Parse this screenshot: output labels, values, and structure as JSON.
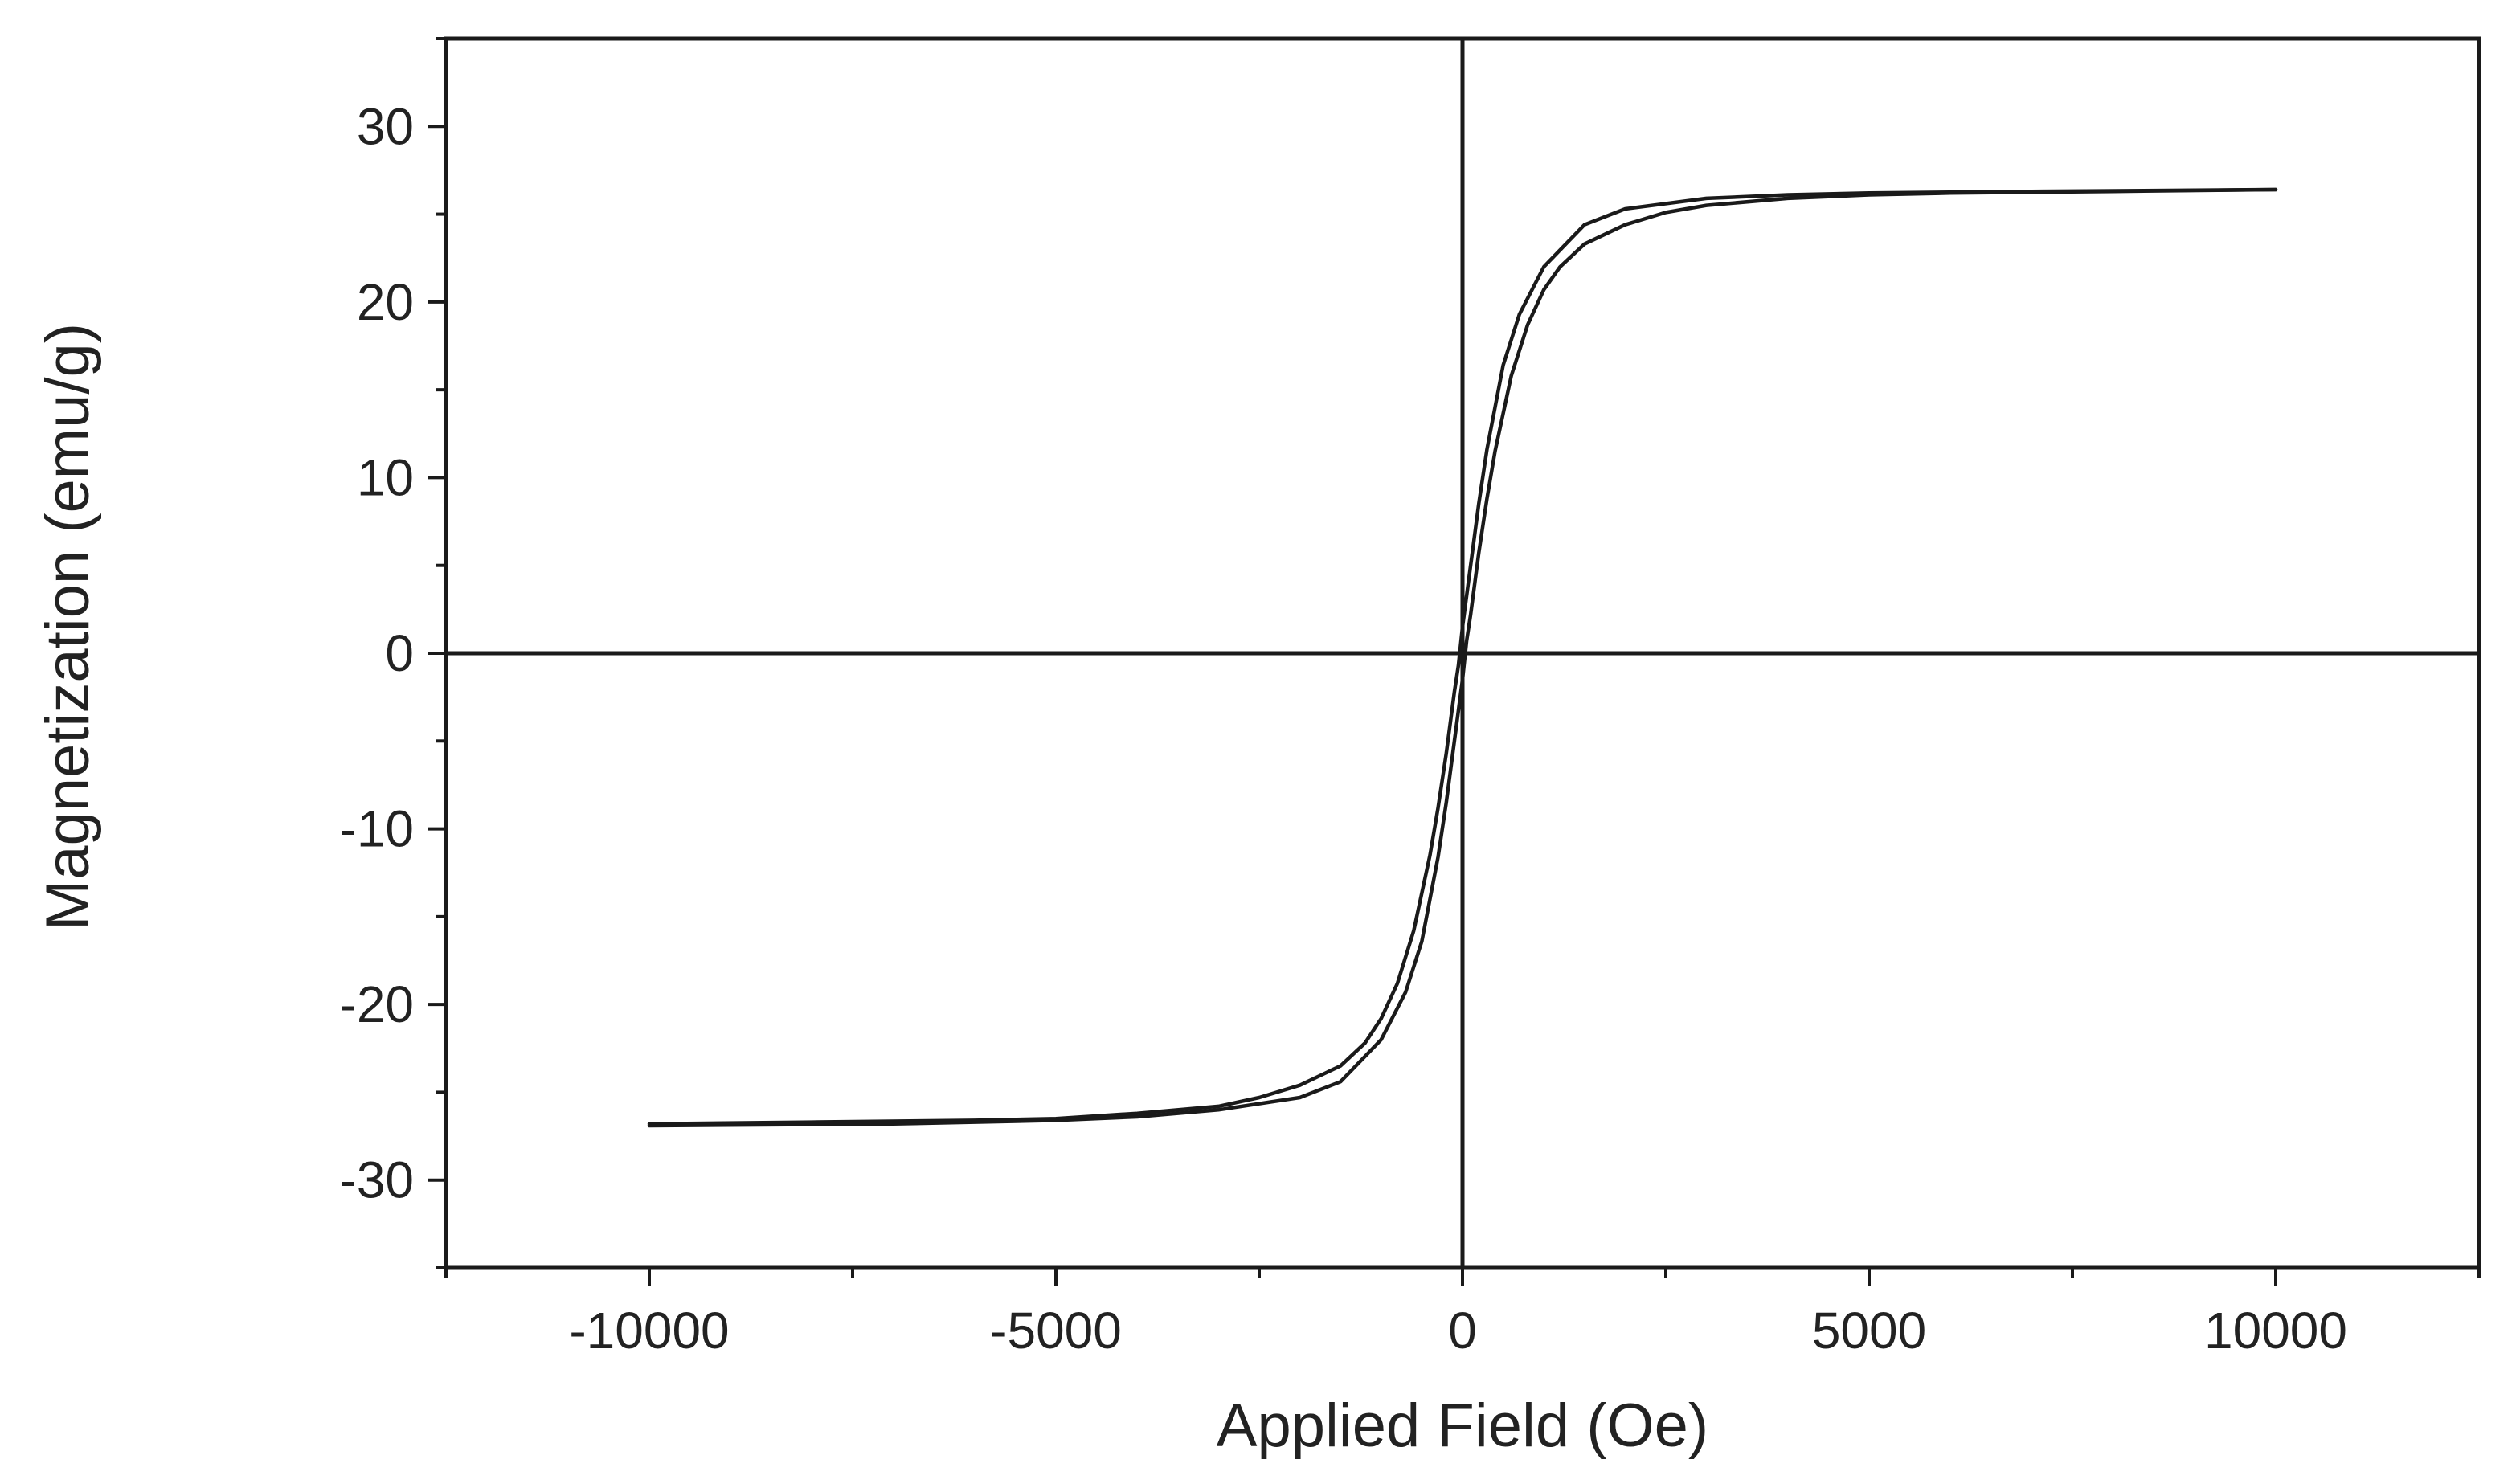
{
  "chart_data": {
    "type": "line",
    "title": "",
    "xlabel": "Applied Field (Oe)",
    "ylabel": "Magnetization (emu/g)",
    "xlim": [
      -12500,
      12500
    ],
    "ylim": [
      -35,
      35
    ],
    "x_ticks": [
      -10000,
      -5000,
      0,
      5000,
      10000
    ],
    "x_tick_labels": [
      "-10000",
      "-5000",
      "0",
      "5000",
      "10000"
    ],
    "y_ticks": [
      -30,
      -20,
      -10,
      0,
      10,
      20,
      30
    ],
    "y_tick_labels": [
      "-30",
      "-20",
      "-10",
      "0",
      "10",
      "20",
      "30"
    ],
    "grid": false,
    "legend": "none",
    "line_color": "#1a1a1a",
    "zero_lines": true,
    "series": [
      {
        "x": [
          10000,
          8000,
          6000,
          5000,
          4000,
          3000,
          2500,
          2000,
          1500,
          1200,
          1000,
          800,
          600,
          400,
          300,
          200,
          100,
          50,
          0,
          -100,
          -200,
          -300,
          -500,
          -700,
          -1000,
          -1500,
          -2000,
          -3000,
          -4000,
          -5000,
          -7000,
          -10000
        ],
        "y": [
          26.4,
          26.3,
          26.2,
          26.1,
          25.9,
          25.5,
          25.1,
          24.4,
          23.3,
          22.0,
          20.7,
          18.7,
          15.8,
          11.5,
          8.8,
          5.7,
          2.2,
          0.7,
          -1.5,
          -5.0,
          -8.5,
          -11.6,
          -16.4,
          -19.3,
          -22.0,
          -24.4,
          -25.3,
          -26.0,
          -26.4,
          -26.6,
          -26.8,
          -26.9
        ]
      },
      {
        "x": [
          -10000,
          -8000,
          -6000,
          -5000,
          -4000,
          -3000,
          -2500,
          -2000,
          -1500,
          -1200,
          -1000,
          -800,
          -600,
          -400,
          -300,
          -200,
          -100,
          -50,
          0,
          100,
          200,
          300,
          500,
          700,
          1000,
          1500,
          2000,
          3000,
          4000,
          5000,
          7000,
          10000
        ],
        "y": [
          -26.8,
          -26.7,
          -26.6,
          -26.5,
          -26.2,
          -25.8,
          -25.3,
          -24.6,
          -23.5,
          -22.2,
          -20.8,
          -18.8,
          -15.8,
          -11.5,
          -8.8,
          -5.7,
          -2.2,
          -0.7,
          1.5,
          5.0,
          8.5,
          11.6,
          16.4,
          19.3,
          22.0,
          24.4,
          25.3,
          25.9,
          26.1,
          26.2,
          26.3,
          26.4
        ]
      }
    ]
  }
}
